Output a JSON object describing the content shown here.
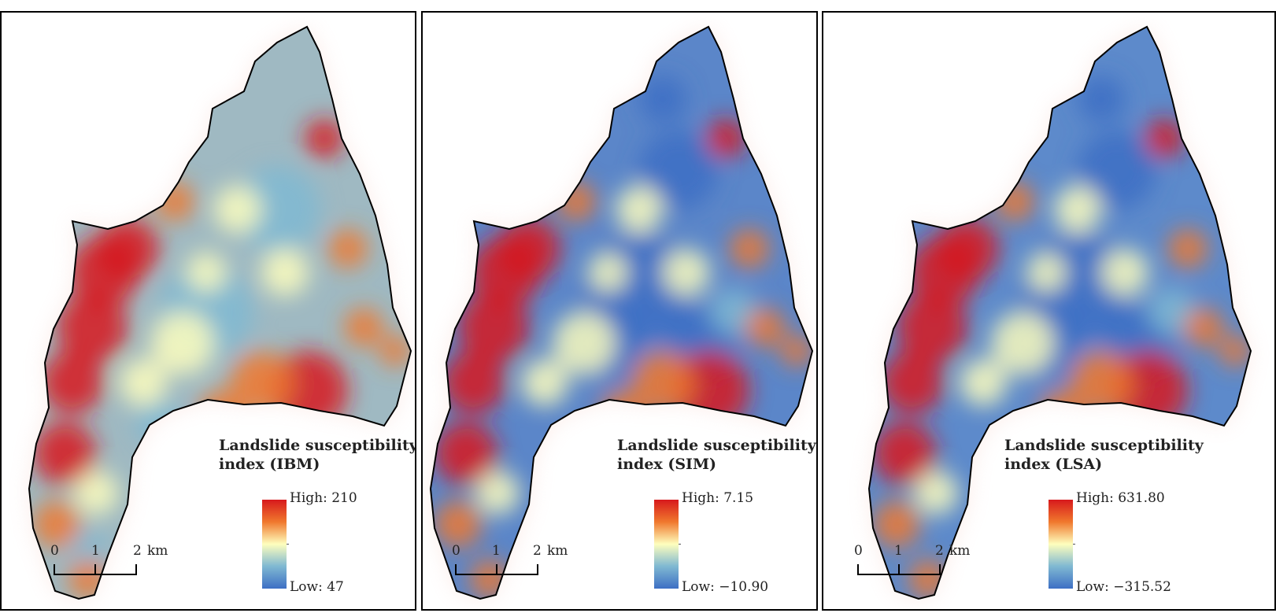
{
  "colors": {
    "high": "#d7191c",
    "mid_high": "#f0782d",
    "mid": "#fefebd",
    "mid_low": "#7fb8d2",
    "low": "#3d6fc4",
    "outline": "#000000"
  },
  "panels": [
    {
      "legend_title_line1": "Landslide susceptibility",
      "legend_title_line2": "index (IBM)",
      "high_label": "High: 210",
      "low_label": "Low: 47",
      "high_value": 210,
      "low_value": 47,
      "scale": {
        "t0": "0",
        "t1": "1",
        "t2": "2",
        "unit": "km"
      }
    },
    {
      "legend_title_line1": "Landslide susceptibility",
      "legend_title_line2": "index (SIM)",
      "high_label": "High: 7.15",
      "low_label": "Low: −10.90",
      "high_value": 7.15,
      "low_value": -10.9,
      "scale": {
        "t0": "0",
        "t1": "1",
        "t2": "2",
        "unit": "km"
      }
    },
    {
      "legend_title_line1": "Landslide susceptibility",
      "legend_title_line2": "index (LSA)",
      "high_label": "High: 631.80",
      "low_label": "Low: −315.52",
      "high_value": 631.8,
      "low_value": -315.52,
      "scale": {
        "t0": "0",
        "t1": "1",
        "t2": "2",
        "unit": "km"
      }
    }
  ]
}
